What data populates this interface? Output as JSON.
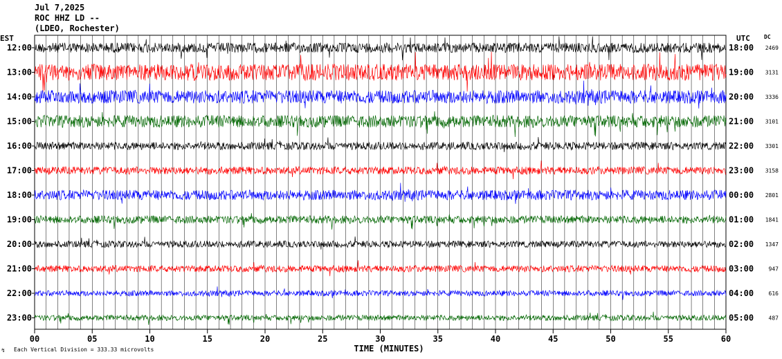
{
  "header": {
    "date": "Jul 7,2025",
    "station": "ROC HHZ LD --",
    "network": "(LDEO, Rochester)"
  },
  "left_zone": "EST",
  "right_zone": "UTC",
  "dc_label": "DC",
  "footer": {
    "scale_note": "Each Vertical Division =  333.33 microvolts",
    "scale_marker": "↯"
  },
  "chart_data": {
    "type": "line",
    "title": "",
    "xlabel": "TIME (MINUTES)",
    "ylabel": "",
    "xlim": [
      0,
      60
    ],
    "x_ticks": [
      0,
      5,
      10,
      15,
      20,
      25,
      30,
      35,
      40,
      45,
      50,
      55,
      60
    ],
    "x_tick_labels": [
      "00",
      "05",
      "10",
      "15",
      "20",
      "25",
      "30",
      "35",
      "40",
      "45",
      "50",
      "55",
      "60"
    ],
    "colors": [
      "#000000",
      "#ff0000",
      "#0000ff",
      "#006600"
    ],
    "rows": [
      {
        "est": "12:00",
        "utc": "18:00",
        "dc": "2469",
        "color": "#000000",
        "amplitude": 0.45
      },
      {
        "est": "13:00",
        "utc": "19:00",
        "dc": "3131",
        "color": "#ff0000",
        "amplitude": 0.75
      },
      {
        "est": "14:00",
        "utc": "20:00",
        "dc": "3336",
        "color": "#0000ff",
        "amplitude": 0.6
      },
      {
        "est": "15:00",
        "utc": "21:00",
        "dc": "3101",
        "color": "#006600",
        "amplitude": 0.55
      },
      {
        "est": "16:00",
        "utc": "22:00",
        "dc": "3301",
        "color": "#000000",
        "amplitude": 0.35
      },
      {
        "est": "17:00",
        "utc": "23:00",
        "dc": "3158",
        "color": "#ff0000",
        "amplitude": 0.35
      },
      {
        "est": "18:00",
        "utc": "00:00",
        "dc": "2801",
        "color": "#0000ff",
        "amplitude": 0.45
      },
      {
        "est": "19:00",
        "utc": "01:00",
        "dc": "1841",
        "color": "#006600",
        "amplitude": 0.35
      },
      {
        "est": "20:00",
        "utc": "02:00",
        "dc": "1347",
        "color": "#000000",
        "amplitude": 0.3
      },
      {
        "est": "21:00",
        "utc": "03:00",
        "dc": "947",
        "color": "#ff0000",
        "amplitude": 0.3
      },
      {
        "est": "22:00",
        "utc": "04:00",
        "dc": "616",
        "color": "#0000ff",
        "amplitude": 0.25
      },
      {
        "est": "23:00",
        "utc": "05:00",
        "dc": "487",
        "color": "#006600",
        "amplitude": 0.25
      }
    ]
  }
}
